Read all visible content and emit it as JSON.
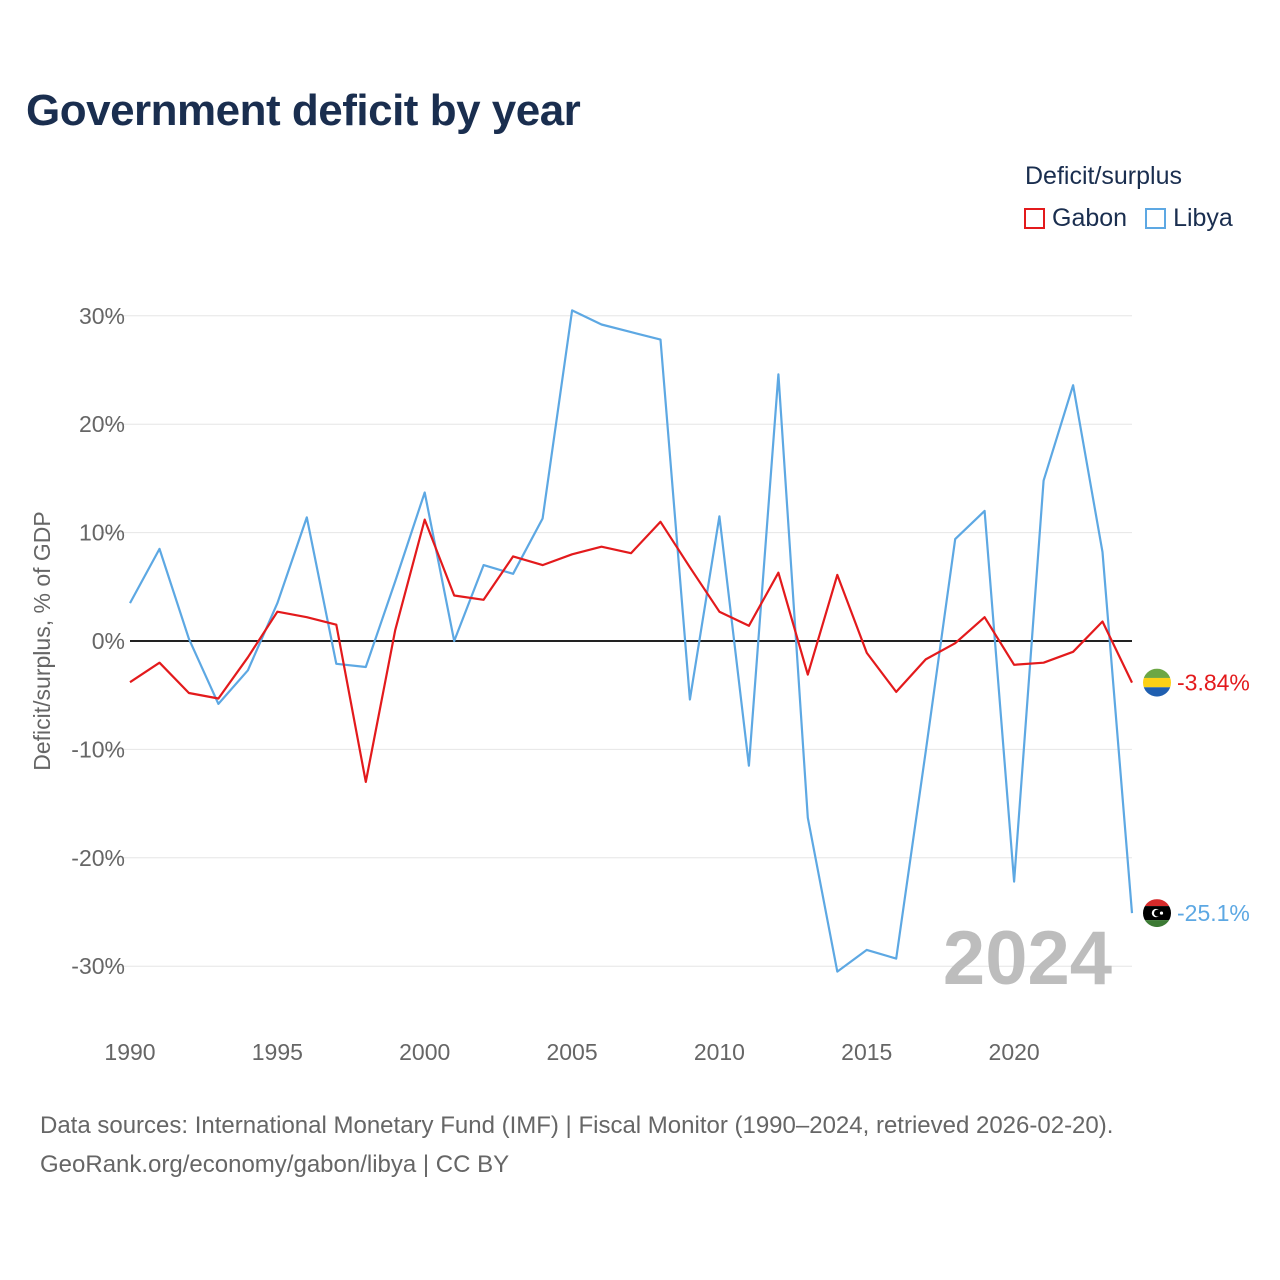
{
  "header": {
    "title": "Government deficit by year"
  },
  "legend": {
    "title": "Deficit/surplus",
    "items": [
      {
        "label": "Gabon",
        "color": "#e31a1c"
      },
      {
        "label": "Libya",
        "color": "#5da8e3"
      }
    ]
  },
  "footer": {
    "line1": "Data sources: International Monetary Fund (IMF) | Fiscal Monitor (1990–2024, retrieved 2026-02-20).",
    "line2": "GeoRank.org/economy/gabon/libya | CC BY"
  },
  "chart_data": {
    "type": "line",
    "title": "Government deficit by year",
    "xlabel": "",
    "ylabel": "Deficit/surplus, % of GDP",
    "year_label": "2024",
    "xlim": [
      1990,
      2024
    ],
    "ylim": [
      -35,
      30
    ],
    "x_ticks": [
      1990,
      1995,
      2000,
      2005,
      2010,
      2015,
      2020
    ],
    "x_tick_labels": [
      "1990",
      "1995",
      "2000",
      "2005",
      "2010",
      "2015",
      "2020"
    ],
    "y_ticks": [
      30,
      20,
      10,
      0,
      -10,
      -20,
      -30
    ],
    "y_tick_labels": [
      "30%",
      "20%",
      "10%",
      "0%",
      "-10%",
      "-20%",
      "-30%"
    ],
    "x": [
      1990,
      1991,
      1992,
      1993,
      1994,
      1995,
      1996,
      1997,
      1998,
      1999,
      2000,
      2001,
      2002,
      2003,
      2004,
      2005,
      2006,
      2007,
      2008,
      2009,
      2010,
      2011,
      2012,
      2013,
      2014,
      2015,
      2016,
      2017,
      2018,
      2019,
      2020,
      2021,
      2022,
      2023,
      2024
    ],
    "series": [
      {
        "name": "Gabon",
        "color": "#e31a1c",
        "end_label": "-3.84%",
        "flag": "gabon-flag",
        "values": [
          -3.8,
          -2.0,
          -4.8,
          -5.3,
          -1.5,
          2.7,
          2.2,
          1.5,
          -13.0,
          1.0,
          11.2,
          4.2,
          3.8,
          7.8,
          7.0,
          8.0,
          8.7,
          8.1,
          11.0,
          6.8,
          2.7,
          1.4,
          6.3,
          -3.1,
          6.1,
          -1.1,
          -4.7,
          -1.7,
          -0.2,
          2.2,
          -2.2,
          -2.0,
          -1.0,
          1.8,
          -3.84
        ]
      },
      {
        "name": "Libya",
        "color": "#5da8e3",
        "end_label": "-25.1%",
        "flag": "libya-flag",
        "values": [
          3.5,
          8.5,
          0.2,
          -5.8,
          -2.7,
          3.5,
          11.4,
          -2.1,
          -2.4,
          5.5,
          13.7,
          0.0,
          7.0,
          6.2,
          11.3,
          30.5,
          29.2,
          28.5,
          27.8,
          -5.4,
          11.5,
          -11.5,
          24.6,
          -16.3,
          -30.5,
          -28.5,
          -29.3,
          -10.2,
          9.4,
          12.0,
          -22.2,
          14.8,
          23.6,
          8.2,
          -25.1
        ]
      }
    ]
  }
}
